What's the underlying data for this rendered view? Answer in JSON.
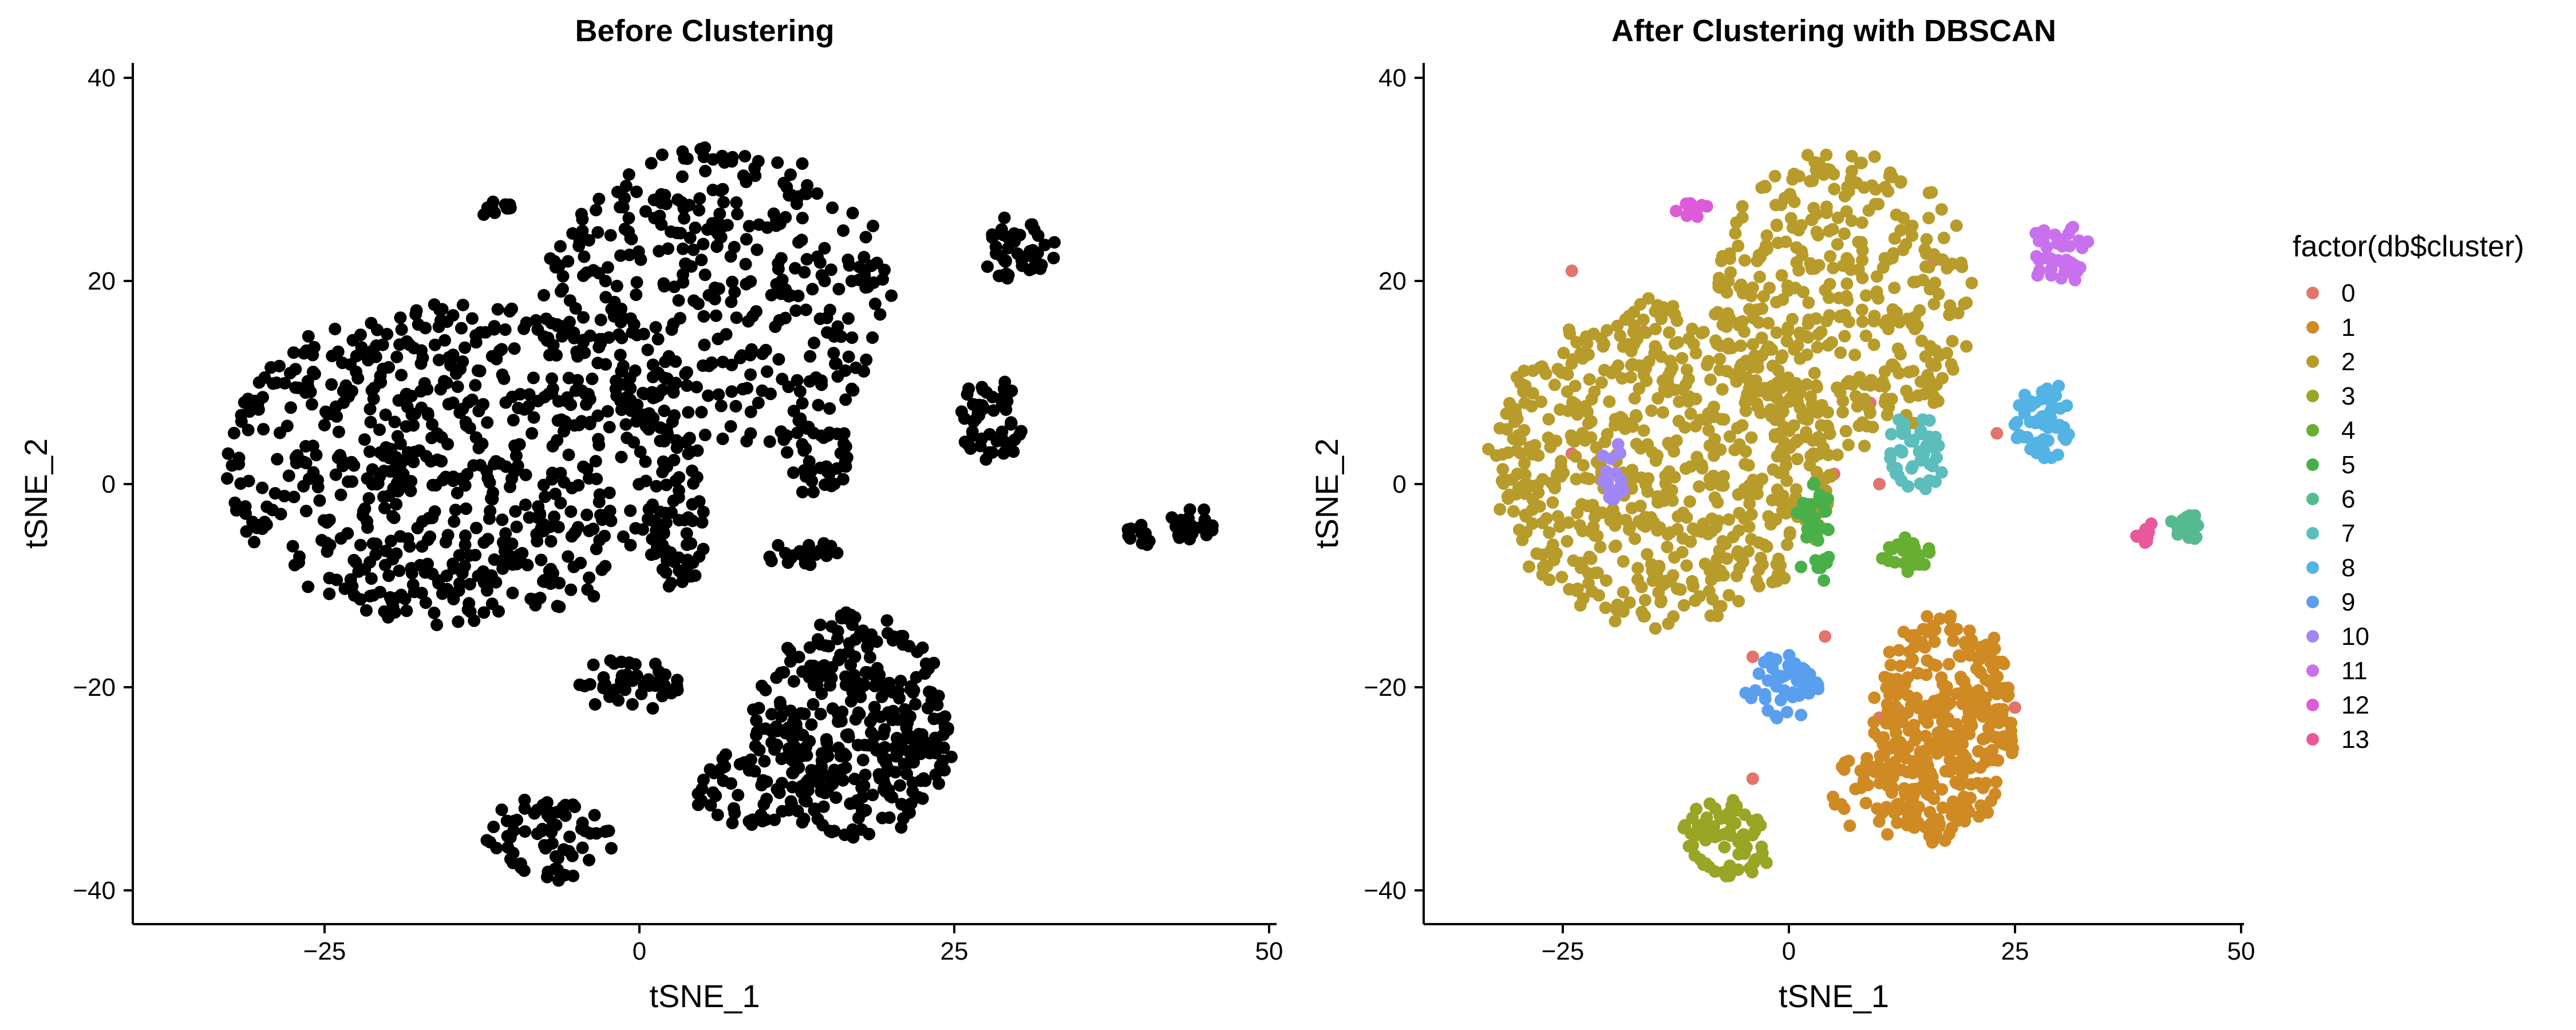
{
  "chart_data": [
    {
      "type": "scatter",
      "title": "Before Clustering",
      "xlabel": "tSNE_1",
      "ylabel": "tSNE_2",
      "xlim": [
        -38,
        50
      ],
      "ylim": [
        -43,
        42
      ],
      "xticks": [
        -25,
        0,
        25,
        50
      ],
      "yticks": [
        -40,
        -20,
        0,
        20,
        40
      ],
      "xtick_labels": [
        "−25",
        "0",
        "25",
        "50"
      ],
      "ytick_labels": [
        "−40",
        "−20",
        "0",
        "20",
        "40"
      ],
      "point_color": "#000000",
      "series": [
        {
          "regions": [
            {
              "x": -14,
              "y": 2,
              "rx": 19,
              "ry": 16,
              "n": 650
            },
            {
              "x": 6,
              "y": 18,
              "rx": 14,
              "ry": 15,
              "n": 380
            },
            {
              "x": 17,
              "y": -24,
              "rx": 8,
              "ry": 11,
              "n": 340
            },
            {
              "x": 10,
              "y": -30,
              "rx": 6,
              "ry": 4,
              "n": 60
            },
            {
              "x": 30,
              "y": 23,
              "rx": 3,
              "ry": 3,
              "n": 45
            },
            {
              "x": 28,
              "y": 6,
              "rx": 3,
              "ry": 4,
              "n": 50
            },
            {
              "x": 14,
              "y": 3,
              "rx": 3,
              "ry": 4,
              "n": 45
            },
            {
              "x": 3,
              "y": -5,
              "rx": 2,
              "ry": 5,
              "n": 40
            },
            {
              "x": 13,
              "y": -7,
              "rx": 3,
              "ry": 1.5,
              "n": 25
            },
            {
              "x": -1,
              "y": -20,
              "rx": 4,
              "ry": 3,
              "n": 45
            },
            {
              "x": -7,
              "y": -35,
              "rx": 5,
              "ry": 4,
              "n": 70
            },
            {
              "x": -19.5,
              "y": 1,
              "rx": 1.5,
              "ry": 3,
              "n": 18
            },
            {
              "x": -11,
              "y": 27,
              "rx": 1.5,
              "ry": 1,
              "n": 12
            },
            {
              "x": 44,
              "y": -4,
              "rx": 2,
              "ry": 1.5,
              "n": 22
            },
            {
              "x": 39.5,
              "y": -5,
              "rx": 1,
              "ry": 1,
              "n": 10
            }
          ]
        }
      ]
    },
    {
      "type": "scatter",
      "title": "After Clustering with DBSCAN",
      "xlabel": "tSNE_1",
      "ylabel": "tSNE_2",
      "xlim": [
        -38,
        50
      ],
      "ylim": [
        -43,
        42
      ],
      "xticks": [
        -25,
        0,
        25,
        50
      ],
      "yticks": [
        -40,
        -20,
        0,
        20,
        40
      ],
      "xtick_labels": [
        "−25",
        "0",
        "25",
        "50"
      ],
      "ytick_labels": [
        "−40",
        "−20",
        "0",
        "20",
        "40"
      ],
      "legend_title": "factor(db$cluster)",
      "legend_position": "right",
      "series": [
        {
          "name": "0",
          "color": "#E2746B",
          "points": [
            [
              -24,
              21
            ],
            [
              -24,
              3
            ],
            [
              -16,
              15
            ],
            [
              -4,
              -17
            ],
            [
              -4,
              -29
            ],
            [
              4,
              -15
            ],
            [
              5,
              1
            ],
            [
              9,
              8
            ],
            [
              10,
              0
            ],
            [
              10,
              -23
            ],
            [
              16,
              22
            ],
            [
              23,
              5
            ],
            [
              25,
              -22
            ]
          ]
        },
        {
          "name": "1",
          "color": "#D08A24",
          "regions": [
            {
              "x": 17,
              "y": -24,
              "rx": 8,
              "ry": 11,
              "n": 330
            },
            {
              "x": 10,
              "y": -30,
              "rx": 6,
              "ry": 4,
              "n": 55
            }
          ]
        },
        {
          "name": "2",
          "color": "#B89C2B",
          "regions": [
            {
              "x": -14,
              "y": 2,
              "rx": 19,
              "ry": 16,
              "n": 650
            },
            {
              "x": 6,
              "y": 18,
              "rx": 14,
              "ry": 15,
              "n": 380
            }
          ]
        },
        {
          "name": "3",
          "color": "#98A525",
          "regions": [
            {
              "x": -7,
              "y": -35,
              "rx": 5,
              "ry": 4,
              "n": 70
            }
          ]
        },
        {
          "name": "4",
          "color": "#66AF31",
          "regions": [
            {
              "x": 13,
              "y": -7,
              "rx": 3,
              "ry": 1.5,
              "n": 25
            }
          ]
        },
        {
          "name": "5",
          "color": "#49B049",
          "regions": [
            {
              "x": 3,
              "y": -5,
              "rx": 2,
              "ry": 5,
              "n": 40
            }
          ]
        },
        {
          "name": "6",
          "color": "#56BA91",
          "regions": [
            {
              "x": 44,
              "y": -4,
              "rx": 2,
              "ry": 1.5,
              "n": 22
            }
          ]
        },
        {
          "name": "7",
          "color": "#5CBDBD",
          "regions": [
            {
              "x": 14,
              "y": 3,
              "rx": 3,
              "ry": 4,
              "n": 45
            }
          ]
        },
        {
          "name": "8",
          "color": "#52B3E4",
          "regions": [
            {
              "x": 28,
              "y": 6,
              "rx": 3,
              "ry": 4,
              "n": 50
            }
          ]
        },
        {
          "name": "9",
          "color": "#5A9EEE",
          "regions": [
            {
              "x": -1,
              "y": -20,
              "rx": 4,
              "ry": 3,
              "n": 45
            }
          ]
        },
        {
          "name": "10",
          "color": "#A186F5",
          "regions": [
            {
              "x": -19.5,
              "y": 1,
              "rx": 1.5,
              "ry": 3,
              "n": 18
            }
          ]
        },
        {
          "name": "11",
          "color": "#C970EF",
          "regions": [
            {
              "x": 30,
              "y": 23,
              "rx": 3,
              "ry": 3,
              "n": 45
            }
          ]
        },
        {
          "name": "12",
          "color": "#DD5BD8",
          "regions": [
            {
              "x": -11,
              "y": 27,
              "rx": 1.5,
              "ry": 1,
              "n": 12
            }
          ]
        },
        {
          "name": "13",
          "color": "#E9589A",
          "regions": [
            {
              "x": 39.5,
              "y": -5,
              "rx": 1,
              "ry": 1,
              "n": 10
            }
          ]
        }
      ]
    }
  ]
}
